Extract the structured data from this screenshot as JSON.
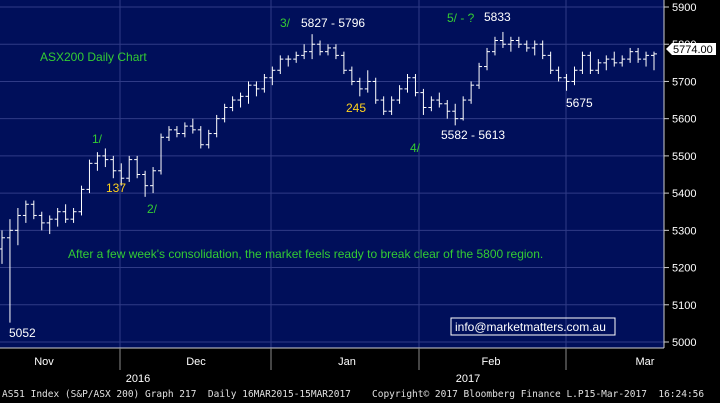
{
  "chart_data": {
    "type": "ohlc",
    "title": "ASX200 Daily Chart",
    "annotation_main": "After a few week's consolidation, the market feels ready to break clear of the 5800 region.",
    "email": "info@marketmatters.com.au",
    "last_price": "5774.00",
    "y_ticks": [
      "5000",
      "5100",
      "5200",
      "5300",
      "5400",
      "5500",
      "5600",
      "5700",
      "5800",
      "5900"
    ],
    "ylim": [
      5000,
      5920
    ],
    "x_ticks": [
      "Nov",
      "Dec",
      "Jan",
      "Feb",
      "Mar"
    ],
    "x_year_labels": [
      "2016",
      "2017"
    ],
    "grid": true,
    "labels": {
      "low_5052": "5052",
      "wave1": "1/",
      "fib137": "137",
      "wave2": "2/",
      "wave3": "3/",
      "range_5827_5796": "5827 - 5796",
      "fib245": "245",
      "wave4": "4/",
      "range_5582_5613": "5582 - 5613",
      "wave5": "5/ - ?",
      "high_5833": "5833",
      "low_5675": "5675"
    },
    "colors": {
      "background": "#000f5a",
      "grid": "#2f3b86",
      "bars": "#ffffff",
      "green_text": "#33cc33",
      "yellow_text": "#ffd21e",
      "white_text": "#ffffff"
    },
    "footer": {
      "left": "AS51 Index (S&P/ASX 200) Graph 217  Daily 16MAR2015-15MAR2017",
      "middle": "Copyright© 2017 Bloomberg Finance L.P.",
      "right": "15-Mar-2017  16:24:56"
    },
    "bars": [
      {
        "o": 5250,
        "h": 5300,
        "l": 5210,
        "c": 5280
      },
      {
        "o": 5280,
        "h": 5330,
        "l": 5052,
        "c": 5300
      },
      {
        "o": 5300,
        "h": 5360,
        "l": 5260,
        "c": 5340
      },
      {
        "o": 5340,
        "h": 5380,
        "l": 5320,
        "c": 5370
      },
      {
        "o": 5370,
        "h": 5380,
        "l": 5330,
        "c": 5340
      },
      {
        "o": 5340,
        "h": 5350,
        "l": 5300,
        "c": 5320
      },
      {
        "o": 5320,
        "h": 5340,
        "l": 5290,
        "c": 5330
      },
      {
        "o": 5330,
        "h": 5360,
        "l": 5310,
        "c": 5350
      },
      {
        "o": 5350,
        "h": 5370,
        "l": 5320,
        "c": 5330
      },
      {
        "o": 5330,
        "h": 5360,
        "l": 5320,
        "c": 5350
      },
      {
        "o": 5350,
        "h": 5420,
        "l": 5340,
        "c": 5410
      },
      {
        "o": 5410,
        "h": 5490,
        "l": 5400,
        "c": 5480
      },
      {
        "o": 5480,
        "h": 5510,
        "l": 5460,
        "c": 5500
      },
      {
        "o": 5500,
        "h": 5520,
        "l": 5470,
        "c": 5490
      },
      {
        "o": 5490,
        "h": 5500,
        "l": 5440,
        "c": 5460
      },
      {
        "o": 5460,
        "h": 5480,
        "l": 5420,
        "c": 5440
      },
      {
        "o": 5440,
        "h": 5500,
        "l": 5430,
        "c": 5490
      },
      {
        "o": 5490,
        "h": 5500,
        "l": 5440,
        "c": 5450
      },
      {
        "o": 5450,
        "h": 5460,
        "l": 5390,
        "c": 5420
      },
      {
        "o": 5420,
        "h": 5470,
        "l": 5400,
        "c": 5460
      },
      {
        "o": 5460,
        "h": 5560,
        "l": 5450,
        "c": 5550
      },
      {
        "o": 5550,
        "h": 5580,
        "l": 5540,
        "c": 5570
      },
      {
        "o": 5570,
        "h": 5580,
        "l": 5550,
        "c": 5560
      },
      {
        "o": 5560,
        "h": 5590,
        "l": 5550,
        "c": 5580
      },
      {
        "o": 5580,
        "h": 5600,
        "l": 5560,
        "c": 5570
      },
      {
        "o": 5570,
        "h": 5580,
        "l": 5520,
        "c": 5530
      },
      {
        "o": 5530,
        "h": 5570,
        "l": 5520,
        "c": 5560
      },
      {
        "o": 5560,
        "h": 5610,
        "l": 5550,
        "c": 5600
      },
      {
        "o": 5600,
        "h": 5640,
        "l": 5590,
        "c": 5630
      },
      {
        "o": 5630,
        "h": 5660,
        "l": 5620,
        "c": 5650
      },
      {
        "o": 5650,
        "h": 5670,
        "l": 5630,
        "c": 5660
      },
      {
        "o": 5660,
        "h": 5700,
        "l": 5640,
        "c": 5690
      },
      {
        "o": 5690,
        "h": 5700,
        "l": 5660,
        "c": 5680
      },
      {
        "o": 5680,
        "h": 5720,
        "l": 5670,
        "c": 5710
      },
      {
        "o": 5710,
        "h": 5740,
        "l": 5690,
        "c": 5730
      },
      {
        "o": 5730,
        "h": 5770,
        "l": 5720,
        "c": 5760
      },
      {
        "o": 5760,
        "h": 5770,
        "l": 5740,
        "c": 5760
      },
      {
        "o": 5760,
        "h": 5780,
        "l": 5750,
        "c": 5770
      },
      {
        "o": 5770,
        "h": 5800,
        "l": 5760,
        "c": 5780
      },
      {
        "o": 5780,
        "h": 5827,
        "l": 5760,
        "c": 5800
      },
      {
        "o": 5800,
        "h": 5810,
        "l": 5770,
        "c": 5780
      },
      {
        "o": 5780,
        "h": 5800,
        "l": 5770,
        "c": 5790
      },
      {
        "o": 5790,
        "h": 5800,
        "l": 5760,
        "c": 5770
      },
      {
        "o": 5770,
        "h": 5780,
        "l": 5720,
        "c": 5730
      },
      {
        "o": 5730,
        "h": 5740,
        "l": 5690,
        "c": 5700
      },
      {
        "o": 5700,
        "h": 5710,
        "l": 5660,
        "c": 5680
      },
      {
        "o": 5680,
        "h": 5730,
        "l": 5670,
        "c": 5700
      },
      {
        "o": 5700,
        "h": 5710,
        "l": 5640,
        "c": 5650
      },
      {
        "o": 5650,
        "h": 5660,
        "l": 5610,
        "c": 5620
      },
      {
        "o": 5620,
        "h": 5660,
        "l": 5610,
        "c": 5650
      },
      {
        "o": 5650,
        "h": 5690,
        "l": 5640,
        "c": 5680
      },
      {
        "o": 5680,
        "h": 5720,
        "l": 5670,
        "c": 5710
      },
      {
        "o": 5710,
        "h": 5720,
        "l": 5660,
        "c": 5670
      },
      {
        "o": 5670,
        "h": 5680,
        "l": 5610,
        "c": 5630
      },
      {
        "o": 5630,
        "h": 5660,
        "l": 5620,
        "c": 5650
      },
      {
        "o": 5650,
        "h": 5670,
        "l": 5630,
        "c": 5640
      },
      {
        "o": 5640,
        "h": 5650,
        "l": 5600,
        "c": 5620
      },
      {
        "o": 5620,
        "h": 5640,
        "l": 5582,
        "c": 5600
      },
      {
        "o": 5600,
        "h": 5660,
        "l": 5595,
        "c": 5650
      },
      {
        "o": 5650,
        "h": 5700,
        "l": 5640,
        "c": 5690
      },
      {
        "o": 5690,
        "h": 5750,
        "l": 5680,
        "c": 5740
      },
      {
        "o": 5740,
        "h": 5790,
        "l": 5730,
        "c": 5780
      },
      {
        "o": 5780,
        "h": 5820,
        "l": 5770,
        "c": 5810
      },
      {
        "o": 5810,
        "h": 5833,
        "l": 5790,
        "c": 5800
      },
      {
        "o": 5800,
        "h": 5820,
        "l": 5780,
        "c": 5810
      },
      {
        "o": 5810,
        "h": 5820,
        "l": 5790,
        "c": 5800
      },
      {
        "o": 5800,
        "h": 5810,
        "l": 5780,
        "c": 5790
      },
      {
        "o": 5790,
        "h": 5810,
        "l": 5770,
        "c": 5800
      },
      {
        "o": 5800,
        "h": 5810,
        "l": 5760,
        "c": 5770
      },
      {
        "o": 5770,
        "h": 5780,
        "l": 5720,
        "c": 5730
      },
      {
        "o": 5730,
        "h": 5740,
        "l": 5700,
        "c": 5710
      },
      {
        "o": 5710,
        "h": 5720,
        "l": 5675,
        "c": 5700
      },
      {
        "o": 5700,
        "h": 5740,
        "l": 5690,
        "c": 5730
      },
      {
        "o": 5730,
        "h": 5780,
        "l": 5720,
        "c": 5770
      },
      {
        "o": 5770,
        "h": 5780,
        "l": 5720,
        "c": 5730
      },
      {
        "o": 5730,
        "h": 5760,
        "l": 5720,
        "c": 5750
      },
      {
        "o": 5750,
        "h": 5770,
        "l": 5730,
        "c": 5760
      },
      {
        "o": 5760,
        "h": 5780,
        "l": 5740,
        "c": 5750
      },
      {
        "o": 5750,
        "h": 5770,
        "l": 5740,
        "c": 5760
      },
      {
        "o": 5760,
        "h": 5790,
        "l": 5750,
        "c": 5780
      },
      {
        "o": 5780,
        "h": 5790,
        "l": 5750,
        "c": 5760
      },
      {
        "o": 5760,
        "h": 5780,
        "l": 5740,
        "c": 5770
      },
      {
        "o": 5770,
        "h": 5780,
        "l": 5730,
        "c": 5774
      }
    ]
  }
}
